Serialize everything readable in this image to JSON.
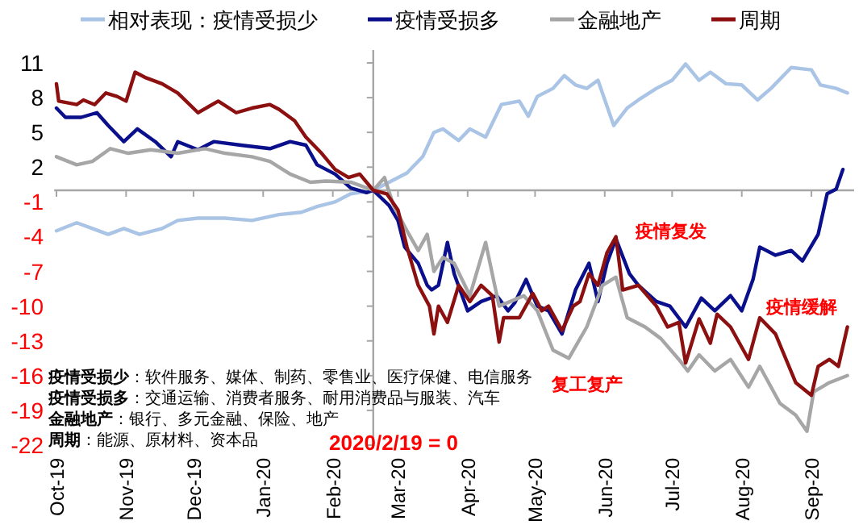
{
  "chart_data": {
    "type": "line",
    "legend": "top",
    "marker": "none",
    "line_style": "solid",
    "xlim": [
      "2019-09-30",
      "2020-09-20"
    ],
    "xticks": [
      {
        "value": "2019-10-01",
        "label": "Oct-19"
      },
      {
        "value": "2019-11-01",
        "label": "Nov-19"
      },
      {
        "value": "2019-12-01",
        "label": "Dec-19"
      },
      {
        "value": "2020-01-01",
        "label": "Jan-20"
      },
      {
        "value": "2020-02-01",
        "label": "Feb-20"
      },
      {
        "value": "2020-03-01",
        "label": "Mar-20"
      },
      {
        "value": "2020-04-01",
        "label": "Apr-20"
      },
      {
        "value": "2020-05-01",
        "label": "May-20"
      },
      {
        "value": "2020-06-01",
        "label": "Jun-20"
      },
      {
        "value": "2020-07-01",
        "label": "Jul-20"
      },
      {
        "value": "2020-08-01",
        "label": "Aug-20"
      },
      {
        "value": "2020-09-01",
        "label": "Sep-20"
      }
    ],
    "ylim": [
      -22,
      11
    ],
    "yticks": [
      11,
      8,
      5,
      2,
      -1,
      -4,
      -7,
      -10,
      -13,
      -16,
      -19,
      -22
    ],
    "ref_lines": [
      {
        "axis": "x",
        "value": "2020-02-19",
        "color": "#a6a6a6"
      },
      {
        "axis": "y",
        "value": 0,
        "color": "#a6a6a6"
      }
    ],
    "series": [
      {
        "name": "相对表现：疫情受损少",
        "color": "#aac4e6",
        "x": [
          "2019-10-01",
          "2019-10-10",
          "2019-10-17",
          "2019-10-24",
          "2019-10-31",
          "2019-11-07",
          "2019-11-17",
          "2019-11-24",
          "2019-12-03",
          "2019-12-15",
          "2019-12-27",
          "2020-01-08",
          "2020-01-18",
          "2020-01-25",
          "2020-02-02",
          "2020-02-09",
          "2020-02-19",
          "2020-02-26",
          "2020-03-05",
          "2020-03-12",
          "2020-03-17",
          "2020-03-21",
          "2020-03-28",
          "2020-04-02",
          "2020-04-09",
          "2020-04-16",
          "2020-04-24",
          "2020-04-28",
          "2020-05-02",
          "2020-05-09",
          "2020-05-14",
          "2020-05-19",
          "2020-05-24",
          "2020-05-29",
          "2020-06-05",
          "2020-06-11",
          "2020-06-16",
          "2020-06-24",
          "2020-07-01",
          "2020-07-07",
          "2020-07-13",
          "2020-07-18",
          "2020-07-25",
          "2020-08-01",
          "2020-08-08",
          "2020-08-14",
          "2020-08-23",
          "2020-09-01",
          "2020-09-05",
          "2020-09-12",
          "2020-09-17"
        ],
        "values": [
          -3.5,
          -2.8,
          -3.3,
          -3.8,
          -3.3,
          -3.8,
          -3.3,
          -2.6,
          -2.4,
          -2.4,
          -2.6,
          -2.1,
          -1.9,
          -1.4,
          -1.0,
          -0.3,
          0,
          0.7,
          1.5,
          2.9,
          5.0,
          5.3,
          4.3,
          5.3,
          4.6,
          7.4,
          7.7,
          6.4,
          8.1,
          8.8,
          9.9,
          9.1,
          8.8,
          9.5,
          5.6,
          7.1,
          7.8,
          8.8,
          9.5,
          10.9,
          9.5,
          10.2,
          9.2,
          9.1,
          7.8,
          8.8,
          10.6,
          10.4,
          9.1,
          8.8,
          8.4
        ]
      },
      {
        "name": "疫情受损多",
        "color": "#0a0f8c",
        "x": [
          "2019-10-01",
          "2019-10-05",
          "2019-10-12",
          "2019-10-19",
          "2019-10-24",
          "2019-10-31",
          "2019-11-06",
          "2019-11-14",
          "2019-11-21",
          "2019-11-24",
          "2019-12-03",
          "2019-12-10",
          "2019-12-22",
          "2020-01-04",
          "2020-01-13",
          "2020-01-20",
          "2020-01-25",
          "2020-02-02",
          "2020-02-09",
          "2020-02-16",
          "2020-02-19",
          "2020-02-26",
          "2020-03-01",
          "2020-03-04",
          "2020-03-10",
          "2020-03-14",
          "2020-03-16",
          "2020-03-19",
          "2020-03-23",
          "2020-03-26",
          "2020-04-01",
          "2020-04-07",
          "2020-04-14",
          "2020-04-19",
          "2020-04-22",
          "2020-04-27",
          "2020-05-02",
          "2020-05-07",
          "2020-05-13",
          "2020-05-19",
          "2020-05-25",
          "2020-05-29",
          "2020-06-02",
          "2020-06-06",
          "2020-06-12",
          "2020-06-16",
          "2020-06-24",
          "2020-06-30",
          "2020-07-07",
          "2020-07-14",
          "2020-07-20",
          "2020-07-27",
          "2020-08-01",
          "2020-08-06",
          "2020-08-09",
          "2020-08-16",
          "2020-08-23",
          "2020-08-28",
          "2020-09-04",
          "2020-09-08",
          "2020-09-12",
          "2020-09-15"
        ],
        "values": [
          7.1,
          6.3,
          6.3,
          6.7,
          5.6,
          4.2,
          5.3,
          4.2,
          2.9,
          4.2,
          3.5,
          4.2,
          3.9,
          3.6,
          4.2,
          3.9,
          2.2,
          1.4,
          0.2,
          -0.2,
          0,
          -1.3,
          -2.6,
          -4.9,
          -6.3,
          -8.2,
          -8.6,
          -8.2,
          -4.5,
          -7.2,
          -10.4,
          -9.6,
          -9.1,
          -10.4,
          -9.7,
          -7.7,
          -10,
          -10.4,
          -12.4,
          -8.6,
          -6.3,
          -9.6,
          -6.3,
          -4.2,
          -7.2,
          -8.2,
          -9.6,
          -10,
          -11.8,
          -9.3,
          -10.4,
          -9.1,
          -10.4,
          -7.7,
          -4.9,
          -5.6,
          -5.2,
          -6.1,
          -3.8,
          -0.3,
          0.1,
          1.8
        ]
      },
      {
        "name": "金融地产",
        "color": "#a6a6a6",
        "x": [
          "2019-10-01",
          "2019-10-10",
          "2019-10-17",
          "2019-10-25",
          "2019-11-02",
          "2019-11-12",
          "2019-11-24",
          "2019-12-06",
          "2019-12-15",
          "2019-12-27",
          "2020-01-04",
          "2020-01-13",
          "2020-01-22",
          "2020-01-29",
          "2020-02-09",
          "2020-02-19",
          "2020-02-24",
          "2020-02-28",
          "2020-03-05",
          "2020-03-10",
          "2020-03-14",
          "2020-03-17",
          "2020-03-21",
          "2020-03-26",
          "2020-04-02",
          "2020-04-09",
          "2020-04-15",
          "2020-04-20",
          "2020-04-26",
          "2020-05-02",
          "2020-05-09",
          "2020-05-16",
          "2020-05-24",
          "2020-05-31",
          "2020-06-06",
          "2020-06-11",
          "2020-06-19",
          "2020-06-26",
          "2020-07-04",
          "2020-07-08",
          "2020-07-13",
          "2020-07-20",
          "2020-07-27",
          "2020-08-04",
          "2020-08-09",
          "2020-08-18",
          "2020-08-25",
          "2020-08-30",
          "2020-09-02",
          "2020-09-09",
          "2020-09-17"
        ],
        "values": [
          2.9,
          2.2,
          2.5,
          3.6,
          3.2,
          3.5,
          3.2,
          3.6,
          3.2,
          2.9,
          2.5,
          1.4,
          0.7,
          0.8,
          0.7,
          0,
          1.1,
          -1.3,
          -3.5,
          -5.2,
          -3.8,
          -7.0,
          -5.8,
          -6.3,
          -9.1,
          -4.5,
          -10,
          -9.6,
          -9.1,
          -10.4,
          -13.8,
          -14.5,
          -11.8,
          -8.2,
          -7.5,
          -11,
          -11.8,
          -12.8,
          -14.6,
          -15.6,
          -14.2,
          -15.6,
          -14.6,
          -17,
          -15.2,
          -18.4,
          -19.4,
          -20.8,
          -17.4,
          -16.6,
          -16.0
        ]
      },
      {
        "name": "周期",
        "color": "#8c1010",
        "x": [
          "2019-10-01",
          "2019-10-02",
          "2019-10-10",
          "2019-10-13",
          "2019-10-18",
          "2019-10-23",
          "2019-10-28",
          "2019-11-01",
          "2019-11-05",
          "2019-11-10",
          "2019-11-17",
          "2019-11-24",
          "2019-12-03",
          "2019-12-12",
          "2019-12-20",
          "2019-12-27",
          "2020-01-04",
          "2020-01-08",
          "2020-01-15",
          "2020-01-20",
          "2020-01-27",
          "2020-02-02",
          "2020-02-08",
          "2020-02-13",
          "2020-02-19",
          "2020-02-25",
          "2020-03-01",
          "2020-03-05",
          "2020-03-10",
          "2020-03-15",
          "2020-03-17",
          "2020-03-19",
          "2020-03-23",
          "2020-03-28",
          "2020-04-02",
          "2020-04-07",
          "2020-04-12",
          "2020-04-15",
          "2020-04-17",
          "2020-04-24",
          "2020-04-30",
          "2020-05-04",
          "2020-05-07",
          "2020-05-13",
          "2020-05-18",
          "2020-05-21",
          "2020-05-25",
          "2020-05-29",
          "2020-06-02",
          "2020-06-06",
          "2020-06-09",
          "2020-06-16",
          "2020-06-24",
          "2020-06-29",
          "2020-07-04",
          "2020-07-07",
          "2020-07-13",
          "2020-07-18",
          "2020-07-21",
          "2020-07-27",
          "2020-08-04",
          "2020-08-09",
          "2020-08-16",
          "2020-08-19",
          "2020-08-25",
          "2020-09-01",
          "2020-09-04",
          "2020-09-09",
          "2020-09-13",
          "2020-09-17"
        ],
        "values": [
          9.2,
          7.7,
          7.4,
          7.8,
          7.4,
          8.4,
          8.1,
          7.7,
          10.2,
          9.7,
          9.2,
          8.4,
          6.7,
          7.7,
          6.7,
          7.1,
          7.4,
          7.0,
          6.0,
          4.6,
          3.2,
          1.8,
          1.1,
          1.4,
          0,
          -0.3,
          -1.7,
          -4.9,
          -8.2,
          -10,
          -12.4,
          -10,
          -11.4,
          -8.2,
          -9.6,
          -8.2,
          -9.1,
          -13.1,
          -11.0,
          -11,
          -8.9,
          -10.4,
          -10,
          -12.1,
          -10,
          -9.6,
          -7.2,
          -8.2,
          -5.4,
          -4.0,
          -8.6,
          -8.2,
          -10,
          -11.8,
          -11.4,
          -14.9,
          -11.1,
          -13.2,
          -10.7,
          -11.8,
          -14.6,
          -11.0,
          -12.4,
          -13.8,
          -16.6,
          -17.7,
          -15.2,
          -14.6,
          -15.2,
          -11.8
        ]
      }
    ],
    "annotations": [
      "**疫情受损少**：软件服务、媒体、制药、零售业、医疗保健、电信服务",
      "**疫情受损多**：交通运输、消费者服务、耐用消费品与服装、汽车",
      "**金融地产**：银行、多元金融、保险、地产",
      "**周期**：能源、原材料、资本品",
      "2020/2/19 = 0",
      "疫情复发",
      "疫情缓解",
      "复工复产"
    ]
  }
}
